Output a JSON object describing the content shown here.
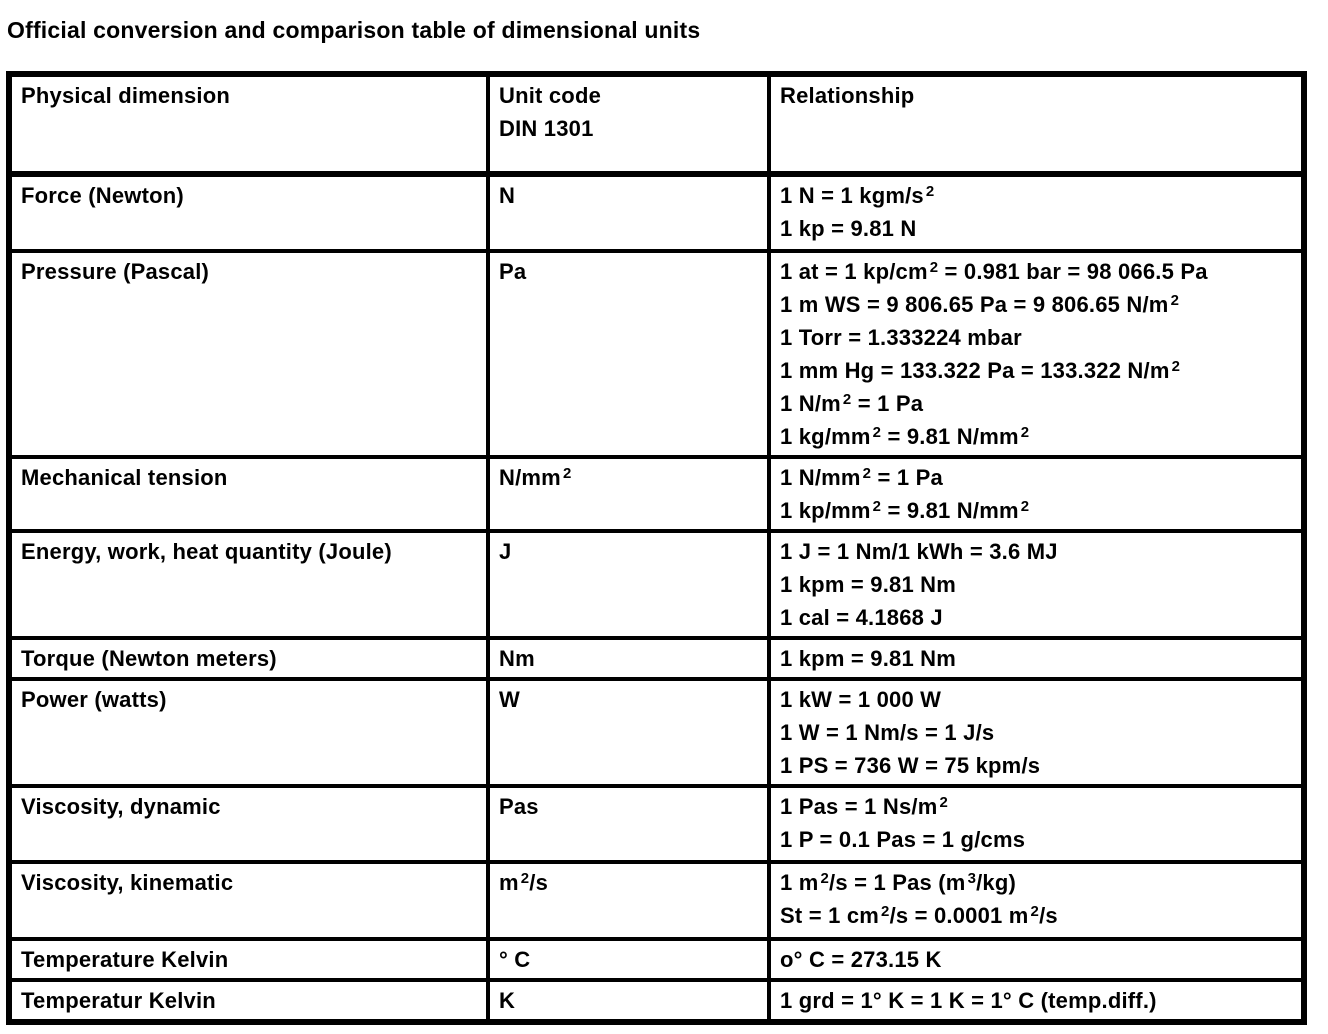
{
  "page": {
    "title": "Official conversion and comparison table of dimensional units"
  },
  "colors": {
    "ink": "#000000",
    "paper": "#ffffff"
  },
  "table": {
    "headers": {
      "dimension": "Physical dimension",
      "unit_code_line1": "Unit code",
      "unit_code_line2": "DIN 1301",
      "relationship": "Relationship"
    },
    "rows": [
      {
        "dimension": "Force (Newton)",
        "unit": "N",
        "relationships": [
          "1 N = 1 kgm/s²",
          "1 kp = 9.81 N"
        ]
      },
      {
        "dimension": "Pressure (Pascal)",
        "unit": "Pa",
        "relationships": [
          "1 at = 1 kp/cm² = 0.981 bar = 98 066.5 Pa",
          "1 m WS = 9 806.65 Pa = 9 806.65 N/m²",
          "1 Torr = 1.333224 mbar",
          "1 mm Hg = 133.322 Pa = 133.322 N/m²",
          "1 N/m² = 1 Pa",
          "1 kg/mm² = 9.81 N/mm²"
        ]
      },
      {
        "dimension": "Mechanical tension",
        "unit": "N/mm²",
        "relationships": [
          "1 N/mm² = 1 Pa",
          "1 kp/mm² = 9.81 N/mm²"
        ]
      },
      {
        "dimension": "Energy, work, heat quantity (Joule)",
        "unit": "J",
        "relationships": [
          "1 J = 1 Nm/1 kWh = 3.6 MJ",
          "1 kpm = 9.81 Nm",
          "1 cal = 4.1868 J"
        ]
      },
      {
        "dimension": "Torque (Newton meters)",
        "unit": "Nm",
        "relationships": [
          "1 kpm = 9.81 Nm"
        ]
      },
      {
        "dimension": "Power (watts)",
        "unit": "W",
        "relationships": [
          "1 kW = 1 000 W",
          "1 W = 1 Nm/s = 1 J/s",
          "1 PS = 736 W = 75 kpm/s"
        ]
      },
      {
        "dimension": "Viscosity, dynamic",
        "unit": "Pas",
        "relationships": [
          "1 Pas = 1 Ns/m²",
          "1 P = 0.1 Pas = 1 g/cms"
        ]
      },
      {
        "dimension": "Viscosity, kinematic",
        "unit": "m²/s",
        "relationships": [
          "1 m²/s = 1 Pas (m³/kg)",
          "St = 1 cm²/s = 0.0001 m²/s"
        ]
      },
      {
        "dimension": "Temperature Kelvin",
        "unit": "° C",
        "relationships": [
          "o° C = 273.15 K"
        ]
      },
      {
        "dimension": "Temperatur Kelvin",
        "unit": "K",
        "relationships": [
          "1 grd = 1° K = 1 K = 1° C (temp.diff.)"
        ]
      }
    ]
  }
}
